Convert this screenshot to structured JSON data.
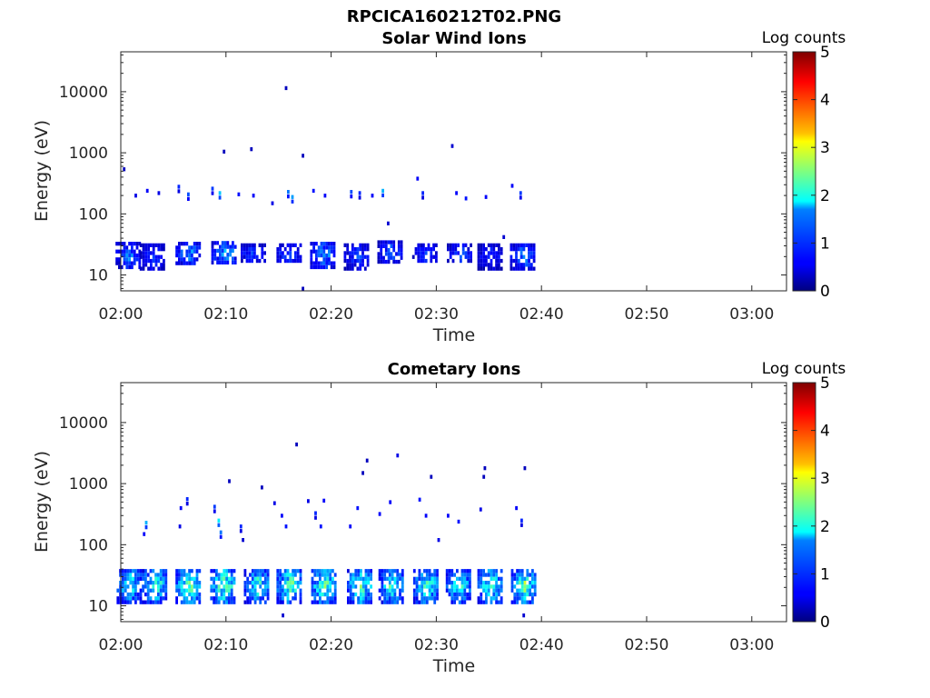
{
  "figure_title": "RPCICA160212T02.PNG",
  "chart_data": [
    {
      "type": "heatmap",
      "title": "Solar Wind Ions",
      "xlabel": "Time",
      "ylabel": "Energy (eV)",
      "x_ticks": [
        "02:00",
        "02:10",
        "02:20",
        "02:30",
        "02:40",
        "02:50",
        "03:00"
      ],
      "y_ticks": [
        "10",
        "100",
        "1000",
        "10000"
      ],
      "y_scale": "log",
      "ylim": [
        5.5,
        45000
      ],
      "xlim_minutes": [
        0,
        63.3
      ],
      "colorbar": {
        "label": "Log counts",
        "ticks": [
          "0",
          "1",
          "2",
          "3",
          "4",
          "5"
        ],
        "range": [
          0,
          5
        ],
        "colormap": "jet"
      },
      "data_extent_minutes": [
        0,
        39
      ],
      "bursts": [
        {
          "t": 0.3,
          "e_lo": 13,
          "e_hi": 35,
          "peak": 1.4
        },
        {
          "t": 2.6,
          "e_lo": 13,
          "e_hi": 33,
          "peak": 1.1
        },
        {
          "t": 6.0,
          "e_lo": 16,
          "e_hi": 35,
          "peak": 1.6
        },
        {
          "t": 9.4,
          "e_lo": 16,
          "e_hi": 36,
          "peak": 1.8
        },
        {
          "t": 12.2,
          "e_lo": 16,
          "e_hi": 33,
          "peak": 1.2
        },
        {
          "t": 15.6,
          "e_lo": 16,
          "e_hi": 33,
          "peak": 1.3
        },
        {
          "t": 18.8,
          "e_lo": 13,
          "e_hi": 35,
          "peak": 1.6
        },
        {
          "t": 22.0,
          "e_lo": 13,
          "e_hi": 33,
          "peak": 1.1
        },
        {
          "t": 25.2,
          "e_lo": 16,
          "e_hi": 37,
          "peak": 1.3
        },
        {
          "t": 28.5,
          "e_lo": 16,
          "e_hi": 33,
          "peak": 1.1
        },
        {
          "t": 31.8,
          "e_lo": 16,
          "e_hi": 33,
          "peak": 1.2
        },
        {
          "t": 34.7,
          "e_lo": 13,
          "e_hi": 33,
          "peak": 1.0
        },
        {
          "t": 37.8,
          "e_lo": 13,
          "e_hi": 33,
          "peak": 1.5
        }
      ],
      "sparse_points": [
        {
          "t": 0.2,
          "e": 540,
          "v": 0.3
        },
        {
          "t": 1.3,
          "e": 200,
          "v": 0.5
        },
        {
          "t": 2.4,
          "e": 240,
          "v": 0.6
        },
        {
          "t": 3.5,
          "e": 220,
          "v": 0.5
        },
        {
          "t": 5.4,
          "e": 280,
          "v": 0.8
        },
        {
          "t": 6.3,
          "e": 210,
          "v": 1.0
        },
        {
          "t": 8.6,
          "e": 260,
          "v": 0.9
        },
        {
          "t": 9.3,
          "e": 220,
          "v": 1.6
        },
        {
          "t": 9.7,
          "e": 1050,
          "v": 0.3
        },
        {
          "t": 11.1,
          "e": 210,
          "v": 0.7
        },
        {
          "t": 12.3,
          "e": 1150,
          "v": 0.3
        },
        {
          "t": 12.5,
          "e": 200,
          "v": 0.6
        },
        {
          "t": 14.3,
          "e": 150,
          "v": 0.5
        },
        {
          "t": 15.6,
          "e": 11500,
          "v": 0.3
        },
        {
          "t": 15.8,
          "e": 230,
          "v": 1.2
        },
        {
          "t": 16.2,
          "e": 190,
          "v": 1.4
        },
        {
          "t": 17.2,
          "e": 900,
          "v": 0.3
        },
        {
          "t": 18.2,
          "e": 240,
          "v": 0.7
        },
        {
          "t": 19.3,
          "e": 200,
          "v": 0.6
        },
        {
          "t": 21.8,
          "e": 230,
          "v": 1.0
        },
        {
          "t": 22.6,
          "e": 220,
          "v": 0.8
        },
        {
          "t": 23.8,
          "e": 200,
          "v": 0.6
        },
        {
          "t": 24.8,
          "e": 240,
          "v": 1.5
        },
        {
          "t": 25.3,
          "e": 70,
          "v": 0.4
        },
        {
          "t": 28.1,
          "e": 380,
          "v": 0.6
        },
        {
          "t": 28.6,
          "e": 220,
          "v": 0.8
        },
        {
          "t": 31.4,
          "e": 1300,
          "v": 0.4
        },
        {
          "t": 31.8,
          "e": 220,
          "v": 0.6
        },
        {
          "t": 32.7,
          "e": 180,
          "v": 0.7
        },
        {
          "t": 34.6,
          "e": 190,
          "v": 0.6
        },
        {
          "t": 37.1,
          "e": 290,
          "v": 0.6
        },
        {
          "t": 37.9,
          "e": 220,
          "v": 0.9
        },
        {
          "t": 36.3,
          "e": 42,
          "v": 0.4
        },
        {
          "t": 17.2,
          "e": 6,
          "v": 0.3
        }
      ]
    },
    {
      "type": "heatmap",
      "title": "Cometary Ions",
      "xlabel": "Time",
      "ylabel": "Energy (eV)",
      "x_ticks": [
        "02:00",
        "02:10",
        "02:20",
        "02:30",
        "02:40",
        "02:50",
        "03:00"
      ],
      "y_ticks": [
        "10",
        "100",
        "1000",
        "10000"
      ],
      "y_scale": "log",
      "ylim": [
        5.5,
        45000
      ],
      "xlim_minutes": [
        0,
        63.3
      ],
      "colorbar": {
        "label": "Log counts",
        "ticks": [
          "0",
          "1",
          "2",
          "3",
          "4",
          "5"
        ],
        "range": [
          0,
          5
        ],
        "colormap": "jet"
      },
      "data_extent_minutes": [
        0,
        39
      ],
      "bursts": [
        {
          "t": 0.4,
          "e_lo": 12,
          "e_hi": 40,
          "peak": 2.3
        },
        {
          "t": 2.8,
          "e_lo": 12,
          "e_hi": 40,
          "peak": 2.6
        },
        {
          "t": 6.0,
          "e_lo": 12,
          "e_hi": 40,
          "peak": 2.8
        },
        {
          "t": 9.3,
          "e_lo": 12,
          "e_hi": 40,
          "peak": 2.9
        },
        {
          "t": 12.5,
          "e_lo": 12,
          "e_hi": 40,
          "peak": 2.4
        },
        {
          "t": 15.6,
          "e_lo": 12,
          "e_hi": 40,
          "peak": 2.7
        },
        {
          "t": 18.9,
          "e_lo": 12,
          "e_hi": 40,
          "peak": 2.8
        },
        {
          "t": 22.3,
          "e_lo": 12,
          "e_hi": 40,
          "peak": 2.7
        },
        {
          "t": 25.3,
          "e_lo": 12,
          "e_hi": 40,
          "peak": 2.5
        },
        {
          "t": 28.6,
          "e_lo": 12,
          "e_hi": 40,
          "peak": 2.6
        },
        {
          "t": 31.7,
          "e_lo": 12,
          "e_hi": 40,
          "peak": 2.4
        },
        {
          "t": 34.7,
          "e_lo": 12,
          "e_hi": 40,
          "peak": 2.5
        },
        {
          "t": 37.9,
          "e_lo": 12,
          "e_hi": 40,
          "peak": 2.8
        }
      ],
      "sparse_points": [
        {
          "t": 2.3,
          "e": 230,
          "v": 1.5
        },
        {
          "t": 2.1,
          "e": 150,
          "v": 0.6
        },
        {
          "t": 5.6,
          "e": 400,
          "v": 0.6
        },
        {
          "t": 6.2,
          "e": 560,
          "v": 0.8
        },
        {
          "t": 5.5,
          "e": 200,
          "v": 0.5
        },
        {
          "t": 8.8,
          "e": 420,
          "v": 0.9
        },
        {
          "t": 9.2,
          "e": 250,
          "v": 1.8
        },
        {
          "t": 9.4,
          "e": 160,
          "v": 1.2
        },
        {
          "t": 10.2,
          "e": 1100,
          "v": 0.3
        },
        {
          "t": 11.3,
          "e": 200,
          "v": 0.8
        },
        {
          "t": 11.5,
          "e": 120,
          "v": 0.4
        },
        {
          "t": 13.3,
          "e": 870,
          "v": 0.3
        },
        {
          "t": 14.5,
          "e": 480,
          "v": 0.5
        },
        {
          "t": 15.2,
          "e": 300,
          "v": 0.6
        },
        {
          "t": 15.6,
          "e": 200,
          "v": 0.7
        },
        {
          "t": 16.6,
          "e": 4400,
          "v": 0.3
        },
        {
          "t": 17.7,
          "e": 520,
          "v": 0.5
        },
        {
          "t": 18.4,
          "e": 330,
          "v": 0.8
        },
        {
          "t": 18.9,
          "e": 200,
          "v": 0.7
        },
        {
          "t": 19.2,
          "e": 530,
          "v": 0.6
        },
        {
          "t": 21.7,
          "e": 200,
          "v": 0.6
        },
        {
          "t": 22.4,
          "e": 400,
          "v": 0.7
        },
        {
          "t": 22.9,
          "e": 1500,
          "v": 0.3
        },
        {
          "t": 23.3,
          "e": 2400,
          "v": 0.3
        },
        {
          "t": 24.5,
          "e": 320,
          "v": 0.6
        },
        {
          "t": 25.5,
          "e": 500,
          "v": 0.6
        },
        {
          "t": 26.2,
          "e": 2900,
          "v": 0.5
        },
        {
          "t": 28.3,
          "e": 550,
          "v": 0.7
        },
        {
          "t": 28.9,
          "e": 300,
          "v": 0.6
        },
        {
          "t": 29.4,
          "e": 1300,
          "v": 0.3
        },
        {
          "t": 30.1,
          "e": 120,
          "v": 0.5
        },
        {
          "t": 31.0,
          "e": 300,
          "v": 0.6
        },
        {
          "t": 32.0,
          "e": 240,
          "v": 0.7
        },
        {
          "t": 34.4,
          "e": 1300,
          "v": 0.3
        },
        {
          "t": 34.5,
          "e": 1800,
          "v": 0.3
        },
        {
          "t": 34.1,
          "e": 380,
          "v": 0.5
        },
        {
          "t": 37.5,
          "e": 400,
          "v": 0.6
        },
        {
          "t": 38.0,
          "e": 250,
          "v": 0.8
        },
        {
          "t": 38.3,
          "e": 1800,
          "v": 0.3
        },
        {
          "t": 38.2,
          "e": 7,
          "v": 0.4
        },
        {
          "t": 15.3,
          "e": 7,
          "v": 0.4
        }
      ]
    }
  ]
}
